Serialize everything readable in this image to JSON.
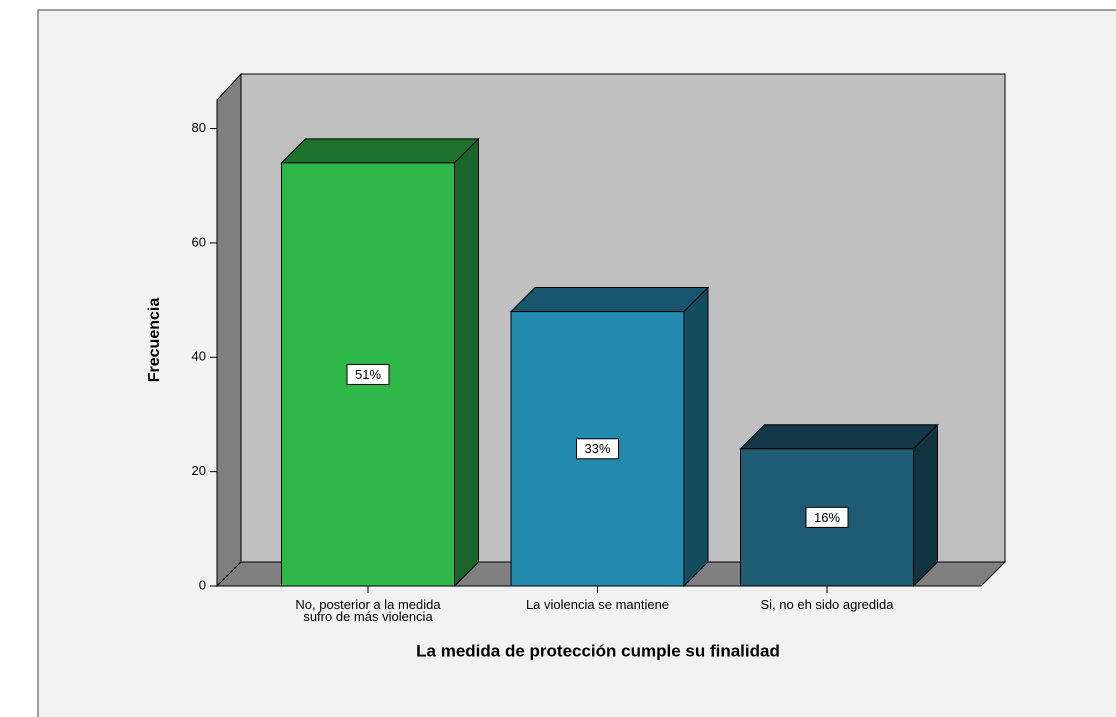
{
  "chart_data": {
    "type": "bar3d",
    "x_label": "La medida de protección cumple su finalidad",
    "y_label": "Frecuencia",
    "categories": [
      "No, posterior a la medida\nsufro de más violencia",
      "La violencia se mantiene",
      "Si, no eh sido agredida"
    ],
    "values": [
      74,
      48,
      24
    ],
    "percent_values": [
      51,
      33,
      16
    ],
    "percent_labels": [
      "51%",
      "33%",
      "16%"
    ],
    "colors": [
      "#2fb84a",
      "#2389ad",
      "#1e5c74"
    ],
    "ylim": [
      0,
      85
    ],
    "yticks": [
      0,
      20,
      40,
      60,
      80
    ]
  }
}
